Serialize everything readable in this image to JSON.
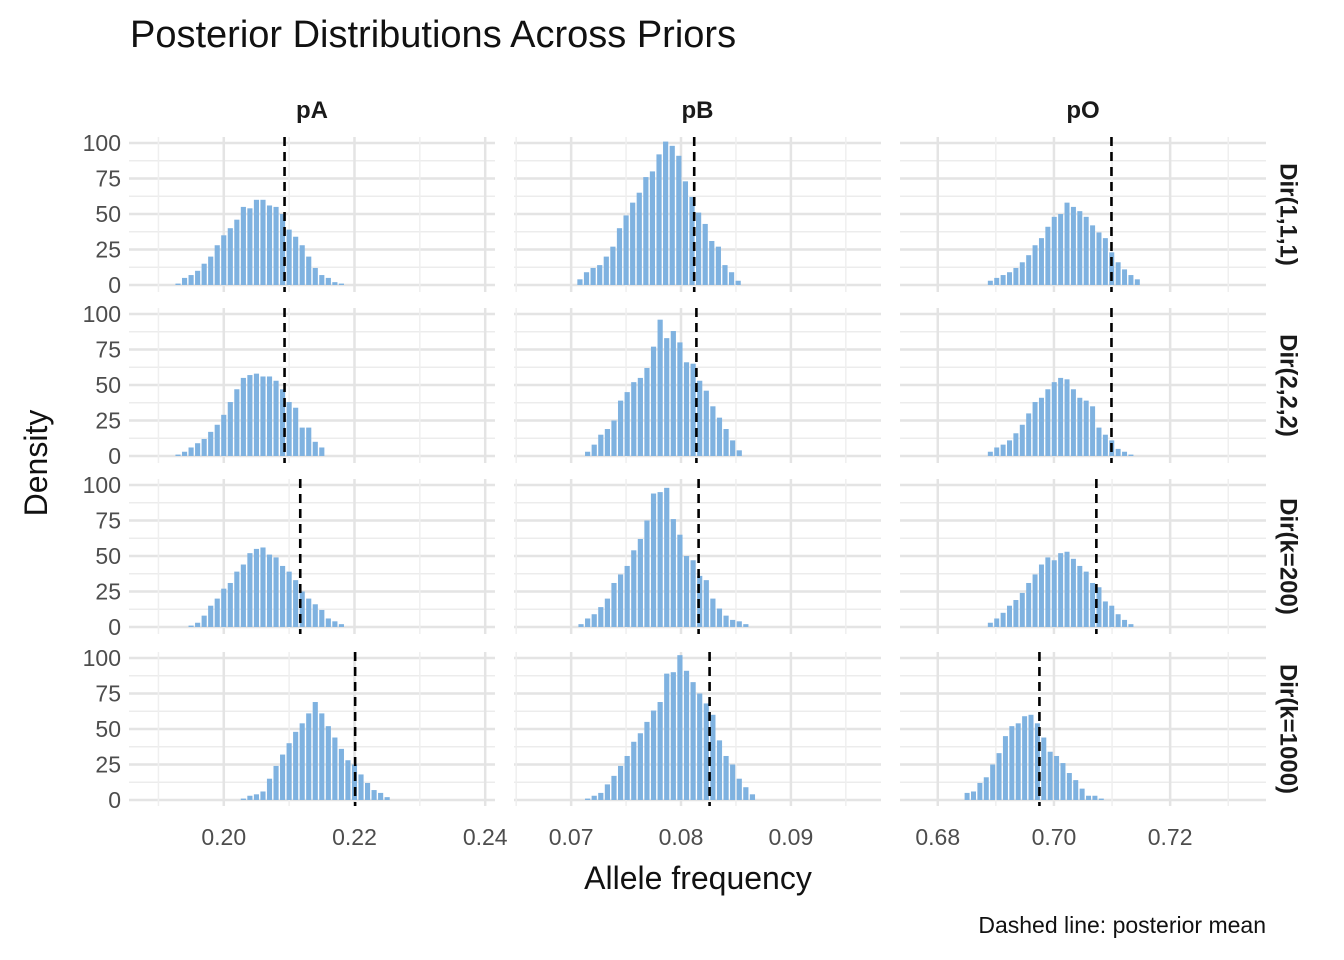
{
  "chart_data": {
    "type": "bar",
    "title": "Posterior Distributions Across Priors",
    "xlabel": "Allele frequency",
    "ylabel": "Density",
    "caption": "Dashed line: posterior mean",
    "facet_cols": [
      "pA",
      "pB",
      "pO"
    ],
    "facet_rows": [
      "Dir(1,1,1)",
      "Dir(2,2,2)",
      "Dir(k=200)",
      "Dir(k=1000)"
    ],
    "ylim": [
      0,
      100
    ],
    "y_ticks": [
      "0",
      "25",
      "50",
      "75",
      "100"
    ],
    "x_axes": [
      {
        "xlim": [
          0.1855,
          0.2415
        ],
        "ticks": [
          0.2,
          0.22,
          0.24
        ],
        "tick_labels": [
          "0.20",
          "0.22",
          "0.24"
        ],
        "bin_width": 0.001
      },
      {
        "xlim": [
          0.0648,
          0.0982
        ],
        "ticks": [
          0.07,
          0.08,
          0.09
        ],
        "tick_labels": [
          "0.07",
          "0.08",
          "0.09"
        ],
        "bin_width": 0.0006
      },
      {
        "xlim": [
          0.6735,
          0.7365
        ],
        "ticks": [
          0.68,
          0.7,
          0.72
        ],
        "tick_labels": [
          "0.68",
          "0.70",
          "0.72"
        ],
        "bin_width": 0.0011
      }
    ],
    "panels": [
      {
        "row": "Dir(1,1,1)",
        "col": "pA",
        "mean": 0.2093,
        "bin_start": 0.1925,
        "densities": [
          1,
          5,
          7,
          10,
          15,
          20,
          28,
          35,
          40,
          46,
          55,
          54,
          60,
          60,
          56,
          55,
          50,
          39,
          34,
          28,
          20,
          12,
          7,
          5,
          2,
          1
        ]
      },
      {
        "row": "Dir(1,1,1)",
        "col": "pB",
        "mean": 0.0812,
        "bin_start": 0.0705,
        "densities": [
          4,
          9,
          12,
          14,
          20,
          27,
          40,
          49,
          58,
          65,
          76,
          80,
          92,
          101,
          98,
          91,
          73,
          62,
          51,
          43,
          31,
          27,
          14,
          9,
          3
        ]
      },
      {
        "row": "Dir(1,1,1)",
        "col": "pO",
        "mean": 0.7099,
        "bin_start": 0.6885,
        "densities": [
          3,
          5,
          7,
          9,
          12,
          16,
          21,
          28,
          33,
          41,
          48,
          50,
          58,
          55,
          52,
          48,
          42,
          37,
          33,
          23,
          16,
          11,
          7,
          4
        ]
      },
      {
        "row": "Dir(2,2,2)",
        "col": "pA",
        "mean": 0.2093,
        "bin_start": 0.1925,
        "densities": [
          1,
          3,
          6,
          9,
          12,
          17,
          22,
          29,
          38,
          47,
          55,
          57,
          58,
          56,
          56,
          53,
          47,
          38,
          34,
          20,
          20,
          10,
          6
        ]
      },
      {
        "row": "Dir(2,2,2)",
        "col": "pB",
        "mean": 0.0814,
        "bin_start": 0.0712,
        "densities": [
          3,
          8,
          15,
          19,
          25,
          39,
          45,
          52,
          55,
          62,
          77,
          96,
          83,
          88,
          80,
          66,
          65,
          53,
          46,
          35,
          27,
          19,
          11,
          4
        ]
      },
      {
        "row": "Dir(2,2,2)",
        "col": "pO",
        "mean": 0.7099,
        "bin_start": 0.6885,
        "densities": [
          3,
          6,
          8,
          11,
          16,
          22,
          30,
          38,
          41,
          47,
          52,
          55,
          54,
          47,
          41,
          39,
          35,
          20,
          15,
          11,
          5,
          3,
          1
        ]
      },
      {
        "row": "Dir(k=200)",
        "col": "pA",
        "mean": 0.2117,
        "bin_start": 0.1945,
        "densities": [
          1,
          3,
          8,
          15,
          20,
          27,
          31,
          39,
          44,
          52,
          55,
          56,
          51,
          49,
          43,
          39,
          33,
          25,
          20,
          16,
          12,
          6,
          4,
          2
        ]
      },
      {
        "row": "Dir(k=200)",
        "col": "pB",
        "mean": 0.0816,
        "bin_start": 0.0706,
        "densities": [
          2,
          6,
          9,
          14,
          20,
          31,
          37,
          43,
          54,
          62,
          75,
          94,
          95,
          98,
          76,
          65,
          50,
          47,
          36,
          33,
          20,
          13,
          8,
          5,
          4,
          2
        ]
      },
      {
        "row": "Dir(k=200)",
        "col": "pO",
        "mean": 0.7073,
        "bin_start": 0.6885,
        "densities": [
          3,
          6,
          10,
          15,
          19,
          24,
          31,
          37,
          44,
          49,
          47,
          52,
          53,
          48,
          43,
          39,
          31,
          28,
          18,
          15,
          9,
          5,
          2
        ]
      },
      {
        "row": "Dir(k=1000)",
        "col": "pA",
        "mean": 0.2201,
        "bin_start": 0.2025,
        "densities": [
          1,
          3,
          4,
          6,
          15,
          24,
          32,
          40,
          48,
          54,
          61,
          69,
          61,
          52,
          44,
          36,
          28,
          25,
          18,
          12,
          7,
          5,
          2
        ]
      },
      {
        "row": "Dir(k=1000)",
        "col": "pB",
        "mean": 0.0826,
        "bin_start": 0.0712,
        "densities": [
          1,
          3,
          5,
          11,
          17,
          24,
          31,
          41,
          47,
          55,
          63,
          69,
          89,
          90,
          102,
          91,
          83,
          75,
          68,
          60,
          42,
          31,
          25,
          15,
          9,
          4
        ]
      },
      {
        "row": "Dir(k=1000)",
        "col": "pO",
        "mean": 0.6975,
        "bin_start": 0.6845,
        "densities": [
          5,
          6,
          12,
          16,
          25,
          33,
          45,
          52,
          54,
          59,
          60,
          54,
          44,
          34,
          31,
          26,
          19,
          14,
          8,
          3,
          3,
          1
        ]
      }
    ]
  }
}
